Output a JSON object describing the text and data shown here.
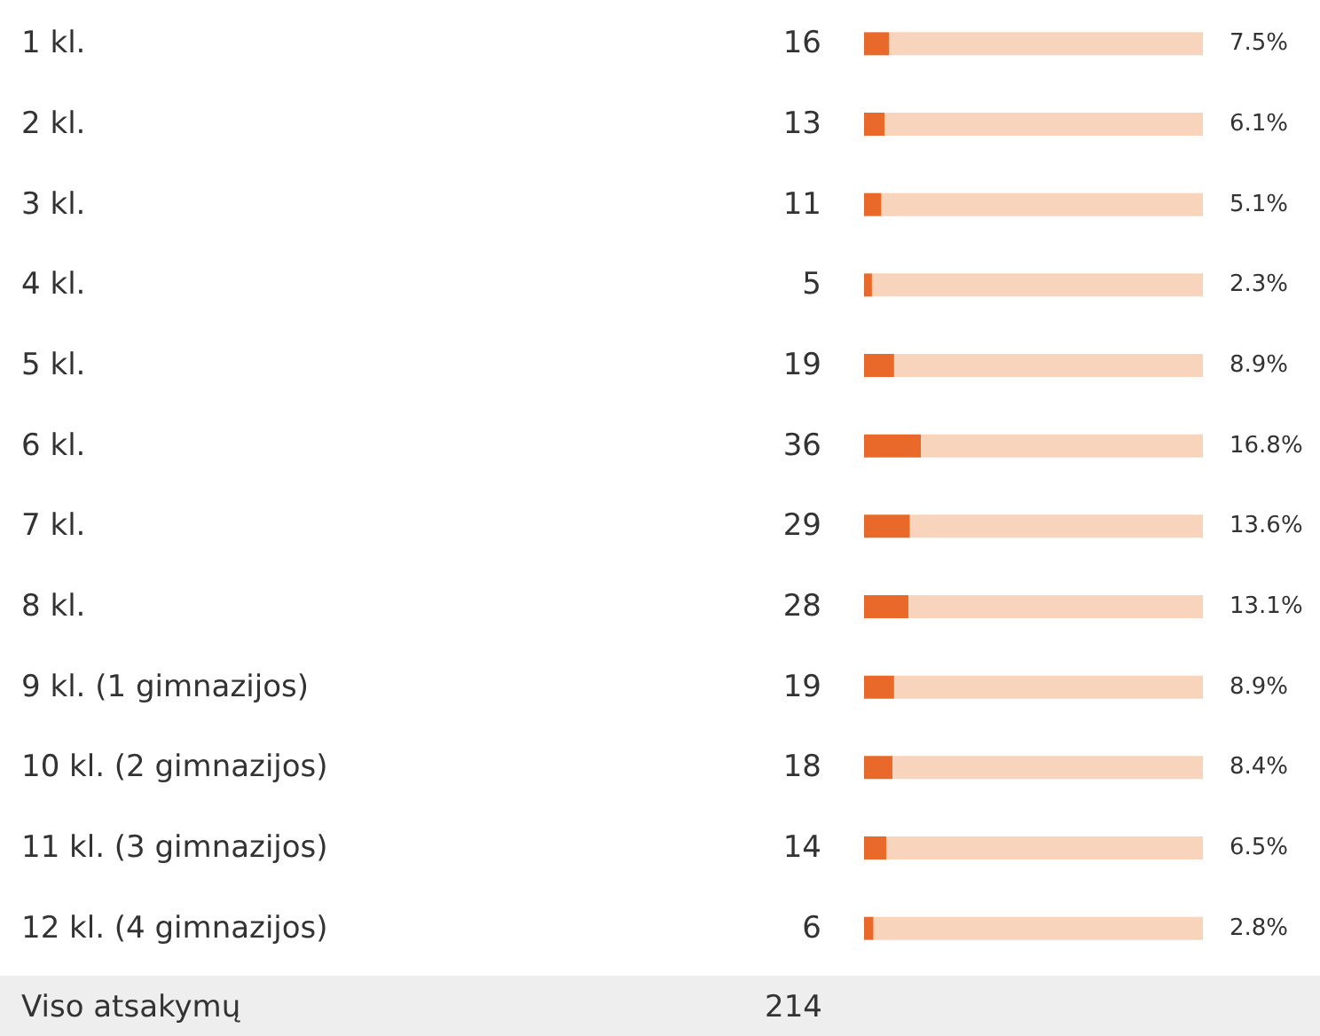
{
  "chart_data": {
    "type": "bar",
    "orientation": "horizontal",
    "stacked": true,
    "categories": [
      "1 kl.",
      "2 kl.",
      "3 kl.",
      "4 kl.",
      "5 kl.",
      "6 kl.",
      "7 kl.",
      "8 kl.",
      "9 kl. (1 gimnazijos)",
      "10 kl. (2 gimnazijos)",
      "11 kl. (3 gimnazijos)",
      "12 kl. (4 gimnazijos)"
    ],
    "series": [
      {
        "color": "#e8692a",
        "values": [
          16,
          13,
          11,
          5,
          19,
          36,
          29,
          28,
          19,
          18,
          14,
          6
        ],
        "value_labels": [
          "16",
          "13",
          "11",
          "5",
          "19",
          "36",
          "29",
          "28",
          "19",
          "18",
          "14",
          "6"
        ]
      },
      {
        "color": "#f8d4bd",
        "values": [
          198,
          201,
          203,
          209,
          195,
          178,
          185,
          186,
          195,
          196,
          200,
          208
        ]
      }
    ],
    "xlim": [
      0,
      214
    ],
    "tick_labels": "y",
    "annotations": [
      "7.5%",
      "6.1%",
      "5.1%",
      "2.3%",
      "8.9%",
      "16.8%",
      "13.6%",
      "13.1%",
      "8.9%",
      "8.4%",
      "6.5%",
      "2.8%",
      "Viso atsakymų",
      "214"
    ]
  }
}
